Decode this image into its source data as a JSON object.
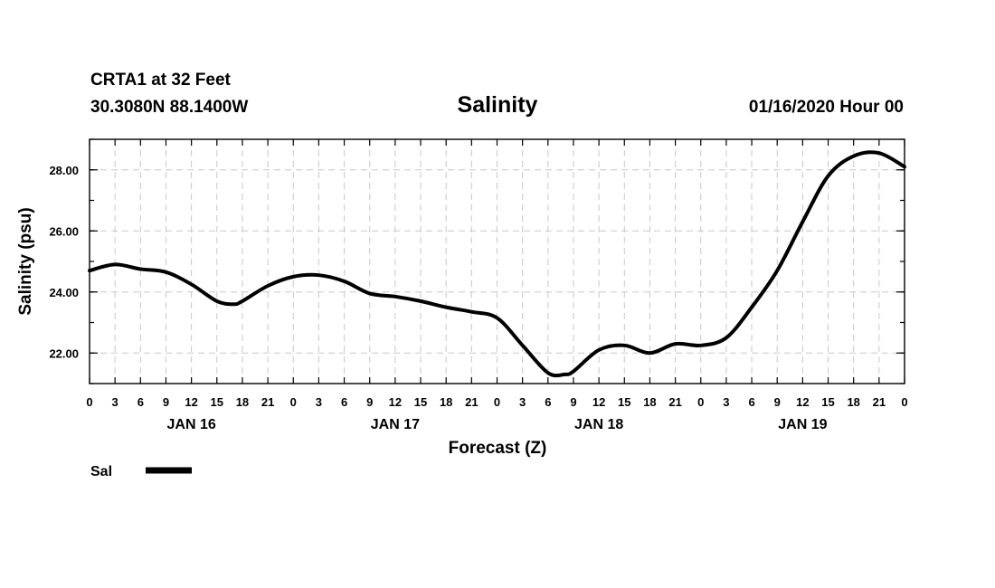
{
  "chart_data": {
    "type": "line",
    "title": "Salinity",
    "station": "CRTA1 at 32 Feet",
    "location": "30.3080N 88.1400W",
    "run_time": "01/16/2020 Hour 00",
    "xlabel": "Forecast (Z)",
    "ylabel": "Salinity (psu)",
    "xlim": [
      0,
      96
    ],
    "ylim": [
      21.0,
      29.0
    ],
    "y_ticks": [
      "22.00",
      "24.00",
      "26.00",
      "28.00"
    ],
    "y_tick_values": [
      22,
      24,
      26,
      28
    ],
    "x_tick_labels": [
      "0",
      "3",
      "6",
      "9",
      "12",
      "15",
      "18",
      "21",
      "0",
      "3",
      "6",
      "9",
      "12",
      "15",
      "18",
      "21",
      "0",
      "3",
      "6",
      "9",
      "12",
      "15",
      "18",
      "21",
      "0",
      "3",
      "6",
      "9",
      "12",
      "15",
      "18",
      "21",
      "0"
    ],
    "day_labels": [
      {
        "label": "JAN 16",
        "hour": 12
      },
      {
        "label": "JAN 17",
        "hour": 36
      },
      {
        "label": "JAN 18",
        "hour": 60
      },
      {
        "label": "JAN 19",
        "hour": 84
      }
    ],
    "grid": true,
    "legend_position": "bottom-left",
    "series": [
      {
        "name": "Sal",
        "x": [
          0,
          3,
          6,
          9,
          12,
          15,
          17,
          18,
          21,
          24,
          27,
          30,
          33,
          36,
          39,
          42,
          45,
          48,
          51,
          54,
          56,
          57,
          60,
          63,
          66,
          69,
          72,
          75,
          78,
          81,
          84,
          87,
          90,
          93,
          96
        ],
        "values": [
          24.7,
          24.9,
          24.75,
          24.65,
          24.25,
          23.7,
          23.6,
          23.7,
          24.2,
          24.5,
          24.55,
          24.35,
          23.95,
          23.85,
          23.7,
          23.5,
          23.35,
          23.15,
          22.25,
          21.35,
          21.3,
          21.4,
          22.1,
          22.25,
          22.0,
          22.3,
          22.25,
          22.5,
          23.5,
          24.7,
          26.3,
          27.8,
          28.45,
          28.55,
          28.1
        ]
      }
    ]
  }
}
